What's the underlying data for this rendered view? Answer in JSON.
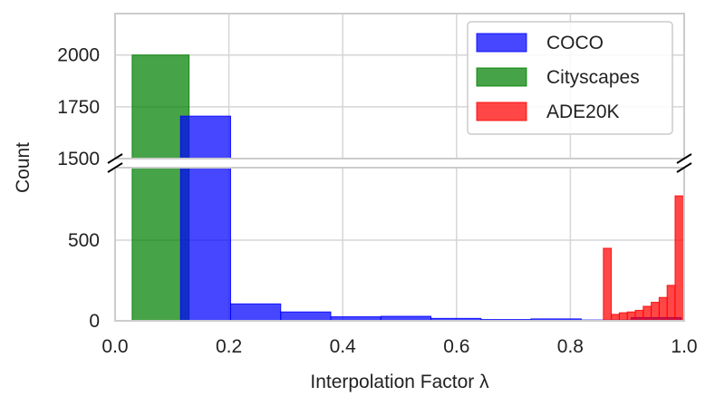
{
  "chart_data": {
    "type": "bar",
    "subtype": "histogram",
    "broken_y_axis": true,
    "title": "",
    "xlabel": "Interpolation Factor λ",
    "ylabel": "Count",
    "xlim": [
      0.0,
      1.0
    ],
    "ylim_upper": [
      1500,
      2200
    ],
    "ylim_lower": [
      0,
      950
    ],
    "x_ticks": [
      "0.0",
      "0.2",
      "0.4",
      "0.6",
      "0.8",
      "1.0"
    ],
    "x_tick_values": [
      0.0,
      0.2,
      0.4,
      0.6,
      0.8,
      1.0
    ],
    "y_ticks_upper": [
      "1500",
      "1750",
      "2000"
    ],
    "y_tick_values_upper": [
      1500,
      1750,
      2000
    ],
    "y_ticks_lower": [
      "0",
      "500"
    ],
    "y_tick_values_lower": [
      0,
      500
    ],
    "grid": true,
    "legend_position": "top-right",
    "series": [
      {
        "name": "COCO",
        "color": "#0000ff",
        "bins": [
          {
            "x0": 0.115,
            "x1": 0.203,
            "count": 1705
          },
          {
            "x0": 0.203,
            "x1": 0.291,
            "count": 105
          },
          {
            "x0": 0.291,
            "x1": 0.379,
            "count": 55
          },
          {
            "x0": 0.379,
            "x1": 0.467,
            "count": 25
          },
          {
            "x0": 0.467,
            "x1": 0.555,
            "count": 28
          },
          {
            "x0": 0.555,
            "x1": 0.643,
            "count": 15
          },
          {
            "x0": 0.643,
            "x1": 0.731,
            "count": 8
          },
          {
            "x0": 0.731,
            "x1": 0.819,
            "count": 12
          },
          {
            "x0": 0.819,
            "x1": 0.907,
            "count": 5
          },
          {
            "x0": 0.907,
            "x1": 0.995,
            "count": 20
          }
        ]
      },
      {
        "name": "Cityscapes",
        "color": "#008000",
        "bins": [
          {
            "x0": 0.03,
            "x1": 0.13,
            "count": 2000
          }
        ]
      },
      {
        "name": "ADE20K",
        "color": "#ff0000",
        "bins": [
          {
            "x0": 0.858,
            "x1": 0.872,
            "count": 450
          },
          {
            "x0": 0.872,
            "x1": 0.886,
            "count": 40
          },
          {
            "x0": 0.886,
            "x1": 0.9,
            "count": 50
          },
          {
            "x0": 0.9,
            "x1": 0.914,
            "count": 55
          },
          {
            "x0": 0.914,
            "x1": 0.928,
            "count": 65
          },
          {
            "x0": 0.928,
            "x1": 0.942,
            "count": 90
          },
          {
            "x0": 0.942,
            "x1": 0.956,
            "count": 115
          },
          {
            "x0": 0.956,
            "x1": 0.97,
            "count": 145
          },
          {
            "x0": 0.97,
            "x1": 0.984,
            "count": 220
          },
          {
            "x0": 0.984,
            "x1": 1.0,
            "count": 775
          }
        ]
      }
    ]
  }
}
